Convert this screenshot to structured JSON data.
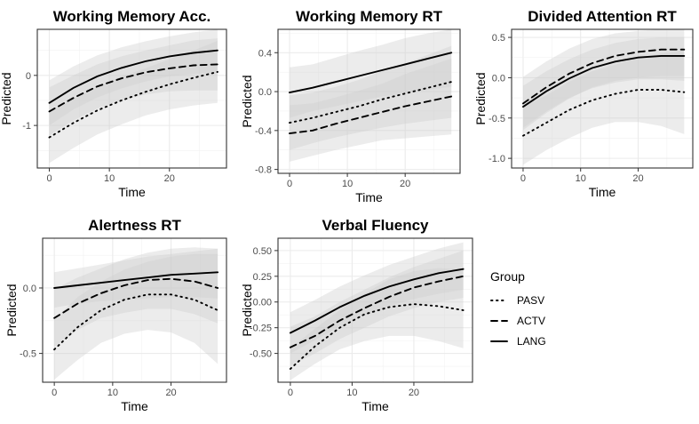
{
  "legend": {
    "title": "Group",
    "items": [
      {
        "label": "PASV",
        "dash": "1.5,4.5"
      },
      {
        "label": "ACTV",
        "dash": "7,5"
      },
      {
        "label": "LANG",
        "dash": ""
      }
    ]
  },
  "chart_data": [
    {
      "type": "line",
      "title": "Working Memory Acc.",
      "xlabel": "Time",
      "ylabel": "Predicted",
      "xlim": [
        -2,
        29.5
      ],
      "ylim": [
        -1.85,
        0.92
      ],
      "xticks": [
        0,
        10,
        20
      ],
      "yticks": [
        -1,
        0
      ],
      "x": [
        0,
        4,
        8,
        12,
        16,
        20,
        24,
        28
      ],
      "series": [
        {
          "name": "PASV",
          "values": [
            -1.24,
            -0.95,
            -0.7,
            -0.5,
            -0.33,
            -0.18,
            -0.05,
            0.07
          ],
          "lower": [
            -1.75,
            -1.45,
            -1.18,
            -0.98,
            -0.8,
            -0.68,
            -0.6,
            -0.55
          ],
          "upper": [
            -0.73,
            -0.45,
            -0.22,
            -0.02,
            0.14,
            0.32,
            0.5,
            0.69
          ]
        },
        {
          "name": "ACTV",
          "values": [
            -0.72,
            -0.45,
            -0.22,
            -0.06,
            0.06,
            0.14,
            0.2,
            0.22
          ],
          "lower": [
            -1.2,
            -0.9,
            -0.66,
            -0.5,
            -0.38,
            -0.32,
            -0.3,
            -0.3
          ],
          "upper": [
            -0.24,
            0.0,
            0.22,
            0.38,
            0.5,
            0.6,
            0.7,
            0.74
          ]
        },
        {
          "name": "LANG",
          "values": [
            -0.55,
            -0.25,
            -0.02,
            0.15,
            0.28,
            0.38,
            0.45,
            0.5
          ],
          "lower": [
            -1.0,
            -0.68,
            -0.44,
            -0.26,
            -0.12,
            -0.02,
            0.03,
            0.05
          ],
          "upper": [
            -0.1,
            0.18,
            0.4,
            0.56,
            0.68,
            0.78,
            0.86,
            0.92
          ]
        }
      ]
    },
    {
      "type": "line",
      "title": "Working Memory RT",
      "xlabel": "Time",
      "ylabel": "Predicted",
      "xlim": [
        -2,
        29.5
      ],
      "ylim": [
        -0.84,
        0.64
      ],
      "xticks": [
        0,
        10,
        20
      ],
      "yticks": [
        -0.8,
        -0.4,
        0.0,
        0.4
      ],
      "x": [
        0,
        4,
        8,
        12,
        16,
        20,
        24,
        28
      ],
      "series": [
        {
          "name": "PASV",
          "values": [
            -0.32,
            -0.27,
            -0.21,
            -0.15,
            -0.08,
            -0.02,
            0.04,
            0.1
          ],
          "lower": [
            -0.6,
            -0.53,
            -0.47,
            -0.42,
            -0.37,
            -0.33,
            -0.3,
            -0.27
          ],
          "upper": [
            -0.04,
            -0.01,
            0.05,
            0.12,
            0.21,
            0.29,
            0.38,
            0.47
          ]
        },
        {
          "name": "ACTV",
          "values": [
            -0.43,
            -0.4,
            -0.33,
            -0.27,
            -0.21,
            -0.15,
            -0.1,
            -0.05
          ],
          "lower": [
            -0.72,
            -0.66,
            -0.6,
            -0.55,
            -0.5,
            -0.48,
            -0.46,
            -0.44
          ],
          "upper": [
            -0.14,
            -0.12,
            -0.06,
            0.01,
            0.08,
            0.18,
            0.26,
            0.34
          ]
        },
        {
          "name": "LANG",
          "values": [
            -0.01,
            0.04,
            0.1,
            0.16,
            0.22,
            0.28,
            0.34,
            0.4
          ],
          "lower": [
            -0.27,
            -0.2,
            -0.15,
            -0.1,
            -0.05,
            -0.02,
            0.02,
            0.05
          ],
          "upper": [
            0.25,
            0.28,
            0.35,
            0.42,
            0.48,
            0.55,
            0.6,
            0.64
          ]
        }
      ]
    },
    {
      "type": "line",
      "title": "Divided Attention RT",
      "xlabel": "Time",
      "ylabel": "Predicted",
      "xlim": [
        -2,
        29.5
      ],
      "ylim": [
        -1.12,
        0.6
      ],
      "xticks": [
        0,
        10,
        20
      ],
      "yticks": [
        -1.0,
        -0.5,
        0.0,
        0.5
      ],
      "x": [
        0,
        4,
        8,
        12,
        16,
        20,
        24,
        28
      ],
      "series": [
        {
          "name": "PASV",
          "values": [
            -0.72,
            -0.56,
            -0.4,
            -0.28,
            -0.2,
            -0.15,
            -0.15,
            -0.18
          ],
          "lower": [
            -1.08,
            -0.9,
            -0.75,
            -0.62,
            -0.55,
            -0.55,
            -0.6,
            -0.7
          ],
          "upper": [
            -0.36,
            -0.22,
            -0.05,
            0.08,
            0.16,
            0.25,
            0.3,
            0.34
          ]
        },
        {
          "name": "ACTV",
          "values": [
            -0.32,
            -0.12,
            0.05,
            0.18,
            0.27,
            0.32,
            0.35,
            0.35
          ],
          "lower": [
            -0.65,
            -0.44,
            -0.26,
            -0.12,
            -0.04,
            0.0,
            0.02,
            0.02
          ],
          "upper": [
            0.01,
            0.2,
            0.36,
            0.48,
            0.55,
            0.58,
            0.6,
            0.6
          ]
        },
        {
          "name": "LANG",
          "values": [
            -0.36,
            -0.17,
            -0.01,
            0.12,
            0.2,
            0.25,
            0.27,
            0.27
          ],
          "lower": [
            -0.62,
            -0.42,
            -0.25,
            -0.13,
            -0.06,
            -0.02,
            -0.02,
            -0.04
          ],
          "upper": [
            -0.1,
            0.08,
            0.23,
            0.35,
            0.43,
            0.48,
            0.5,
            0.5
          ]
        }
      ]
    },
    {
      "type": "line",
      "title": "Alertness RT",
      "xlabel": "Time",
      "ylabel": "Predicted",
      "xlim": [
        -2,
        29.5
      ],
      "ylim": [
        -0.72,
        0.38
      ],
      "xticks": [
        0,
        10,
        20
      ],
      "yticks": [
        -0.5,
        0.0
      ],
      "x": [
        0,
        4,
        8,
        12,
        16,
        20,
        24,
        28
      ],
      "series": [
        {
          "name": "PASV",
          "values": [
            -0.47,
            -0.3,
            -0.17,
            -0.09,
            -0.05,
            -0.05,
            -0.09,
            -0.17
          ],
          "lower": [
            -0.7,
            -0.55,
            -0.42,
            -0.35,
            -0.32,
            -0.34,
            -0.42,
            -0.58
          ],
          "upper": [
            -0.24,
            -0.07,
            0.05,
            0.14,
            0.2,
            0.24,
            0.26,
            0.26
          ]
        },
        {
          "name": "ACTV",
          "values": [
            -0.23,
            -0.12,
            -0.04,
            0.02,
            0.06,
            0.07,
            0.05,
            0.0
          ],
          "lower": [
            -0.45,
            -0.32,
            -0.23,
            -0.19,
            -0.16,
            -0.16,
            -0.2,
            -0.27
          ],
          "upper": [
            -0.01,
            0.08,
            0.15,
            0.22,
            0.27,
            0.3,
            0.31,
            0.3
          ]
        },
        {
          "name": "LANG",
          "values": [
            0.0,
            0.02,
            0.04,
            0.06,
            0.08,
            0.1,
            0.11,
            0.12
          ],
          "lower": [
            -0.15,
            -0.12,
            -0.1,
            -0.09,
            -0.08,
            -0.07,
            -0.07,
            -0.08
          ],
          "upper": [
            0.12,
            0.15,
            0.18,
            0.21,
            0.24,
            0.26,
            0.28,
            0.3
          ]
        }
      ]
    },
    {
      "type": "line",
      "title": "Verbal Fluency",
      "xlabel": "Time",
      "ylabel": "Predicted",
      "xlim": [
        -2,
        29.5
      ],
      "ylim": [
        -0.78,
        0.62
      ],
      "xticks": [
        0,
        10,
        20
      ],
      "yticks": [
        -0.5,
        -0.25,
        0.0,
        0.25,
        0.5
      ],
      "x": [
        0,
        4,
        8,
        12,
        16,
        20,
        24,
        28
      ],
      "series": [
        {
          "name": "PASV",
          "values": [
            -0.65,
            -0.43,
            -0.25,
            -0.12,
            -0.05,
            -0.02,
            -0.04,
            -0.08
          ],
          "lower": [
            -0.76,
            -0.6,
            -0.46,
            -0.38,
            -0.33,
            -0.33,
            -0.38,
            -0.45
          ],
          "upper": [
            -0.45,
            -0.26,
            -0.08,
            0.08,
            0.22,
            0.3,
            0.33,
            0.32
          ]
        },
        {
          "name": "ACTV",
          "values": [
            -0.44,
            -0.33,
            -0.18,
            -0.06,
            0.05,
            0.14,
            0.2,
            0.25
          ],
          "lower": [
            -0.62,
            -0.5,
            -0.36,
            -0.25,
            -0.14,
            -0.06,
            0.0,
            0.04
          ],
          "upper": [
            -0.24,
            -0.14,
            0.0,
            0.12,
            0.24,
            0.34,
            0.42,
            0.5
          ]
        },
        {
          "name": "LANG",
          "values": [
            -0.3,
            -0.18,
            -0.05,
            0.06,
            0.15,
            0.22,
            0.28,
            0.32
          ],
          "lower": [
            -0.5,
            -0.37,
            -0.24,
            -0.13,
            -0.04,
            0.03,
            0.08,
            0.12
          ],
          "upper": [
            -0.1,
            0.02,
            0.15,
            0.26,
            0.36,
            0.44,
            0.52,
            0.58
          ]
        }
      ]
    }
  ]
}
